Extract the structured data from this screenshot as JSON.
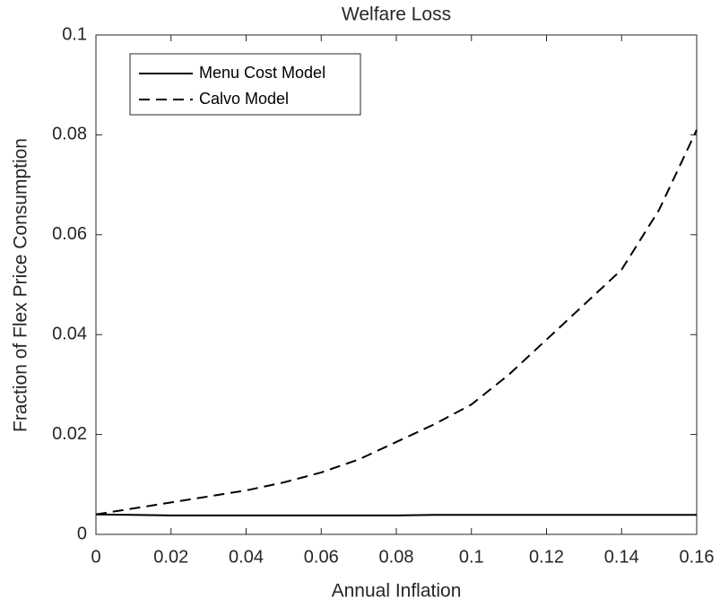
{
  "chart_data": {
    "type": "line",
    "title": "Welfare Loss",
    "xlabel": "Annual Inflation",
    "ylabel": "Fraction of Flex Price Consumption",
    "x": [
      0,
      0.01,
      0.02,
      0.03,
      0.04,
      0.05,
      0.06,
      0.07,
      0.08,
      0.09,
      0.1,
      0.11,
      0.12,
      0.13,
      0.14,
      0.15,
      0.16
    ],
    "series": [
      {
        "name": "Menu Cost Model",
        "color": "#000000",
        "linestyle": "solid",
        "values": [
          0.004,
          0.0039,
          0.0038,
          0.0038,
          0.0038,
          0.0038,
          0.0038,
          0.0038,
          0.0038,
          0.0039,
          0.0039,
          0.0039,
          0.0039,
          0.0039,
          0.0039,
          0.0039,
          0.0039
        ]
      },
      {
        "name": "Calvo Model",
        "color": "#000000",
        "linestyle": "dashed",
        "values": [
          0.004,
          0.0052,
          0.0064,
          0.0076,
          0.0088,
          0.0104,
          0.0124,
          0.015,
          0.0185,
          0.022,
          0.026,
          0.032,
          0.039,
          0.046,
          0.053,
          0.065,
          0.081
        ]
      }
    ],
    "xlim": [
      0,
      0.16
    ],
    "xticks": [
      0,
      0.02,
      0.04,
      0.06,
      0.08,
      0.1,
      0.12,
      0.14,
      0.16
    ],
    "ylim": [
      0,
      0.1
    ],
    "yticks": [
      0,
      0.02,
      0.04,
      0.06,
      0.08,
      0.1
    ],
    "grid": false,
    "legend_position": "upper-left"
  }
}
